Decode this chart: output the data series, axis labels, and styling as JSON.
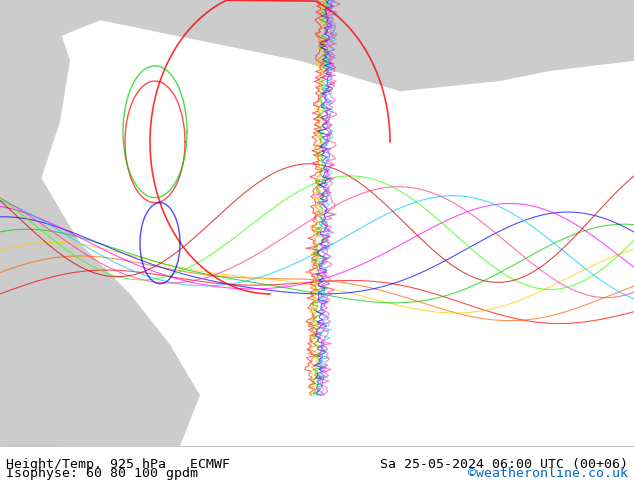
{
  "title_left": "Height/Temp. 925 hPa   ECMWF",
  "title_right": "Sa 25-05-2024 06:00 UTC (00+06)",
  "subtitle_left": "Isophyse: 60 80 100 gpdm",
  "subtitle_right": "©weatheronline.co.uk",
  "subtitle_right_color": "#0066cc",
  "bg_map_color": "#c8e6a0",
  "bg_gray_color": "#cccccc",
  "text_color": "#000000",
  "bottom_bar_color": "#f0f0f0",
  "fig_width": 6.34,
  "fig_height": 4.9,
  "dpi": 100
}
